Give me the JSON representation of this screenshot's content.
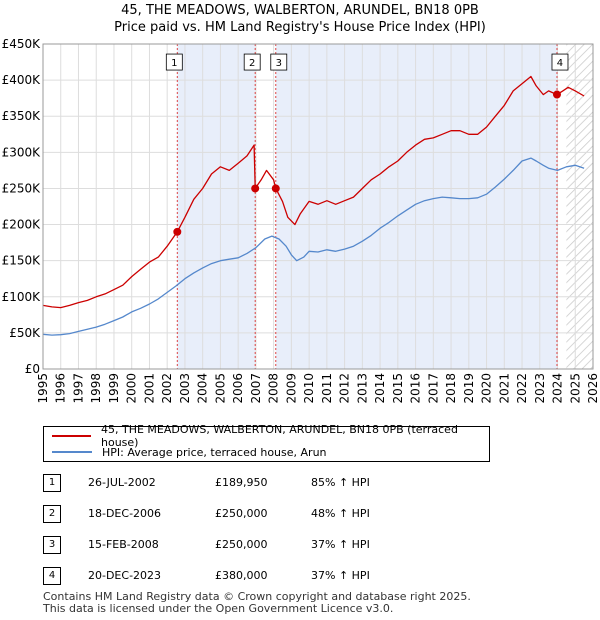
{
  "title": "45, THE MEADOWS, WALBERTON, ARUNDEL, BN18 0PB",
  "subtitle": "Price paid vs. HM Land Registry's House Price Index (HPI)",
  "chart_data": {
    "type": "line",
    "xlim": [
      1995,
      2026
    ],
    "ylim": [
      0,
      450000
    ],
    "x_ticks": [
      1995,
      1996,
      1997,
      1998,
      1999,
      2000,
      2001,
      2002,
      2003,
      2004,
      2005,
      2006,
      2007,
      2008,
      2009,
      2010,
      2011,
      2012,
      2013,
      2014,
      2015,
      2016,
      2017,
      2018,
      2019,
      2020,
      2021,
      2022,
      2023,
      2024,
      2025,
      2026
    ],
    "y_ticks": [
      0,
      50000,
      100000,
      150000,
      200000,
      250000,
      300000,
      350000,
      400000,
      450000
    ],
    "y_tick_labels": [
      "£0",
      "£50K",
      "£100K",
      "£150K",
      "£200K",
      "£250K",
      "£300K",
      "£350K",
      "£400K",
      "£450K"
    ],
    "shaded_ranges": [
      [
        2002.57,
        2006.96
      ],
      [
        2008.12,
        2023.97
      ]
    ],
    "hatched_from": 2024.5,
    "series": [
      {
        "name": "45, THE MEADOWS, WALBERTON, ARUNDEL, BN18 0PB (terraced house)",
        "color": "#cc0000",
        "x": [
          1995,
          1995.5,
          1996,
          1996.5,
          1997,
          1997.5,
          1998,
          1998.5,
          1999,
          1999.5,
          2000,
          2000.5,
          2001,
          2001.5,
          2002,
          2002.57,
          2003,
          2003.5,
          2004,
          2004.5,
          2005,
          2005.5,
          2006,
          2006.5,
          2006.9,
          2006.96,
          2007.3,
          2007.6,
          2008.0,
          2008.12,
          2008.5,
          2008.8,
          2009.2,
          2009.5,
          2010,
          2010.5,
          2011,
          2011.5,
          2012,
          2012.5,
          2013,
          2013.5,
          2014,
          2014.5,
          2015,
          2015.5,
          2016,
          2016.5,
          2017,
          2017.5,
          2018,
          2018.5,
          2019,
          2019.5,
          2020,
          2020.5,
          2021,
          2021.5,
          2022,
          2022.5,
          2022.8,
          2023.2,
          2023.5,
          2023.97,
          2024.3,
          2024.6,
          2025,
          2025.5
        ],
        "y": [
          88000,
          86000,
          85000,
          88000,
          92000,
          95000,
          100000,
          104000,
          110000,
          116000,
          128000,
          138000,
          148000,
          155000,
          170000,
          189950,
          210000,
          235000,
          250000,
          270000,
          280000,
          275000,
          285000,
          295000,
          310000,
          250000,
          262000,
          275000,
          262000,
          250000,
          232000,
          210000,
          200000,
          215000,
          232000,
          228000,
          233000,
          228000,
          233000,
          238000,
          250000,
          262000,
          270000,
          280000,
          288000,
          300000,
          310000,
          318000,
          320000,
          325000,
          330000,
          330000,
          325000,
          325000,
          335000,
          350000,
          365000,
          385000,
          395000,
          405000,
          392000,
          380000,
          385000,
          380000,
          385000,
          390000,
          385000,
          378000
        ]
      },
      {
        "name": "HPI: Average price, terraced house, Arun",
        "color": "#5588cc",
        "x": [
          1995,
          1995.5,
          1996,
          1996.5,
          1997,
          1997.5,
          1998,
          1998.5,
          1999,
          1999.5,
          2000,
          2000.5,
          2001,
          2001.5,
          2002,
          2002.5,
          2003,
          2003.5,
          2004,
          2004.5,
          2005,
          2005.5,
          2006,
          2006.5,
          2007,
          2007.5,
          2007.9,
          2008.3,
          2008.7,
          2009.0,
          2009.3,
          2009.7,
          2010,
          2010.5,
          2011,
          2011.5,
          2012,
          2012.5,
          2013,
          2013.5,
          2014,
          2014.5,
          2015,
          2015.5,
          2016,
          2016.5,
          2017,
          2017.5,
          2018,
          2018.5,
          2019,
          2019.5,
          2020,
          2020.5,
          2021,
          2021.5,
          2022,
          2022.5,
          2022.8,
          2023.2,
          2023.5,
          2024,
          2024.5,
          2025,
          2025.5
        ],
        "y": [
          48000,
          47000,
          47500,
          49000,
          52000,
          55000,
          58000,
          62000,
          67000,
          72000,
          79000,
          84000,
          90000,
          97000,
          106000,
          115000,
          125000,
          133000,
          140000,
          146000,
          150000,
          152000,
          154000,
          160000,
          168000,
          180000,
          184000,
          180000,
          170000,
          158000,
          150000,
          155000,
          163000,
          162000,
          165000,
          163000,
          166000,
          170000,
          177000,
          185000,
          195000,
          203000,
          212000,
          220000,
          228000,
          233000,
          236000,
          238000,
          237000,
          236000,
          236000,
          237000,
          242000,
          252000,
          263000,
          275000,
          288000,
          292000,
          288000,
          282000,
          278000,
          275000,
          280000,
          282000,
          278000
        ]
      }
    ],
    "markers": [
      {
        "label": "1",
        "x": 2002.57,
        "y": 189950
      },
      {
        "label": "2",
        "x": 2006.96,
        "y": 250000
      },
      {
        "label": "3",
        "x": 2008.12,
        "y": 250000
      },
      {
        "label": "4",
        "x": 2023.97,
        "y": 380000
      }
    ],
    "marker_box_y": 425000
  },
  "legend": {
    "items": [
      {
        "label": "45, THE MEADOWS, WALBERTON, ARUNDEL, BN18 0PB (terraced house)",
        "color": "#cc0000"
      },
      {
        "label": "HPI: Average price, terraced house, Arun",
        "color": "#5588cc"
      }
    ]
  },
  "sales": [
    {
      "num": "1",
      "date": "26-JUL-2002",
      "price": "£189,950",
      "hpi": "85% ↑ HPI"
    },
    {
      "num": "2",
      "date": "18-DEC-2006",
      "price": "£250,000",
      "hpi": "48% ↑ HPI"
    },
    {
      "num": "3",
      "date": "15-FEB-2008",
      "price": "£250,000",
      "hpi": "37% ↑ HPI"
    },
    {
      "num": "4",
      "date": "20-DEC-2023",
      "price": "£380,000",
      "hpi": "37% ↑ HPI"
    }
  ],
  "footer": {
    "line1": "Contains HM Land Registry data © Crown copyright and database right 2025.",
    "line2": "This data is licensed under the Open Government Licence v3.0."
  }
}
